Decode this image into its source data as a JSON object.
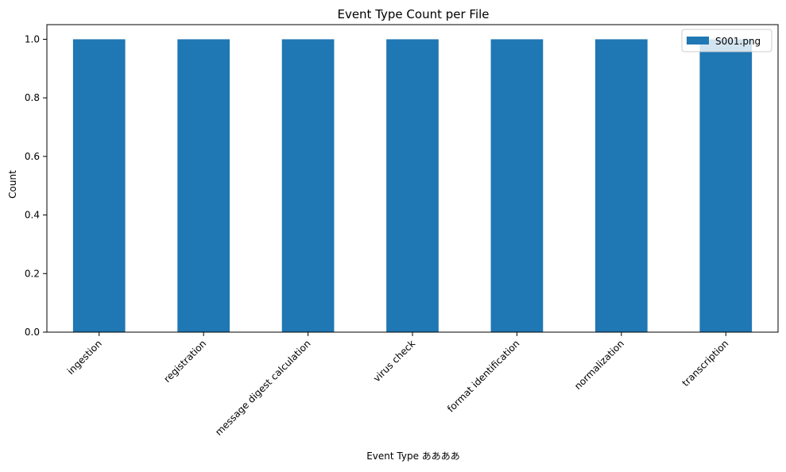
{
  "chart_data": {
    "type": "bar",
    "title": "Event Type Count per File",
    "xlabel": "Event Type ああああ",
    "ylabel": "Count",
    "categories": [
      "ingestion",
      "registration",
      "message digest calculation",
      "virus check",
      "format identification",
      "normalization",
      "transcription"
    ],
    "series": [
      {
        "name": "S001.png",
        "color": "#1f77b4",
        "values": [
          1,
          1,
          1,
          1,
          1,
          1,
          1
        ]
      }
    ],
    "ylim": [
      0,
      1.05
    ],
    "yticks": [
      "0.0",
      "0.2",
      "0.4",
      "0.6",
      "0.8",
      "1.0"
    ],
    "grid": false,
    "legend_position": "top-right"
  }
}
